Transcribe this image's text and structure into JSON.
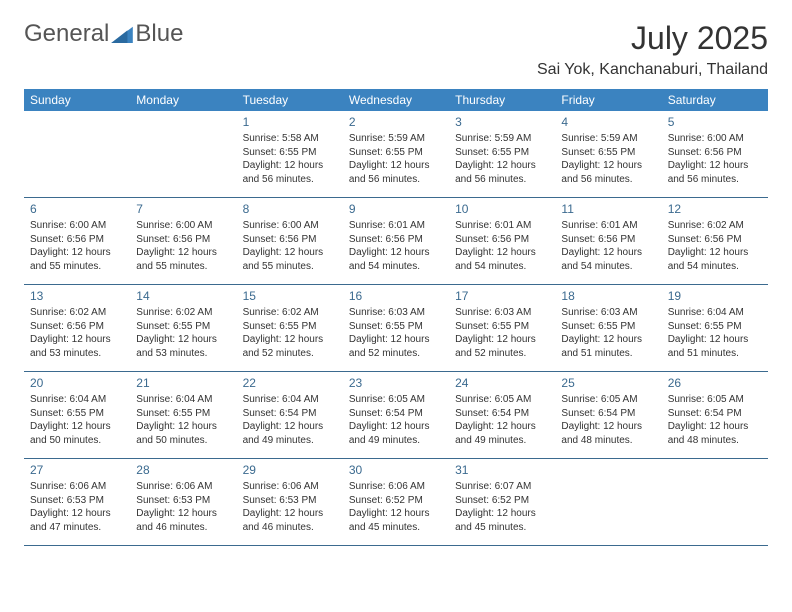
{
  "logo": {
    "word1": "General",
    "word2": "Blue"
  },
  "title": "July 2025",
  "location": "Sai Yok, Kanchanaburi, Thailand",
  "colors": {
    "header_bg": "#3b83c0",
    "header_text": "#ffffff",
    "day_number": "#3b6a8f",
    "row_border": "#3b6a8f",
    "body_text": "#333333",
    "logo_gray": "#555555",
    "logo_blue": "#3b83c0"
  },
  "weekdays": [
    "Sunday",
    "Monday",
    "Tuesday",
    "Wednesday",
    "Thursday",
    "Friday",
    "Saturday"
  ],
  "weeks": [
    [
      null,
      null,
      {
        "n": "1",
        "sunrise": "5:58 AM",
        "sunset": "6:55 PM",
        "daylight": "12 hours and 56 minutes."
      },
      {
        "n": "2",
        "sunrise": "5:59 AM",
        "sunset": "6:55 PM",
        "daylight": "12 hours and 56 minutes."
      },
      {
        "n": "3",
        "sunrise": "5:59 AM",
        "sunset": "6:55 PM",
        "daylight": "12 hours and 56 minutes."
      },
      {
        "n": "4",
        "sunrise": "5:59 AM",
        "sunset": "6:55 PM",
        "daylight": "12 hours and 56 minutes."
      },
      {
        "n": "5",
        "sunrise": "6:00 AM",
        "sunset": "6:56 PM",
        "daylight": "12 hours and 56 minutes."
      }
    ],
    [
      {
        "n": "6",
        "sunrise": "6:00 AM",
        "sunset": "6:56 PM",
        "daylight": "12 hours and 55 minutes."
      },
      {
        "n": "7",
        "sunrise": "6:00 AM",
        "sunset": "6:56 PM",
        "daylight": "12 hours and 55 minutes."
      },
      {
        "n": "8",
        "sunrise": "6:00 AM",
        "sunset": "6:56 PM",
        "daylight": "12 hours and 55 minutes."
      },
      {
        "n": "9",
        "sunrise": "6:01 AM",
        "sunset": "6:56 PM",
        "daylight": "12 hours and 54 minutes."
      },
      {
        "n": "10",
        "sunrise": "6:01 AM",
        "sunset": "6:56 PM",
        "daylight": "12 hours and 54 minutes."
      },
      {
        "n": "11",
        "sunrise": "6:01 AM",
        "sunset": "6:56 PM",
        "daylight": "12 hours and 54 minutes."
      },
      {
        "n": "12",
        "sunrise": "6:02 AM",
        "sunset": "6:56 PM",
        "daylight": "12 hours and 54 minutes."
      }
    ],
    [
      {
        "n": "13",
        "sunrise": "6:02 AM",
        "sunset": "6:56 PM",
        "daylight": "12 hours and 53 minutes."
      },
      {
        "n": "14",
        "sunrise": "6:02 AM",
        "sunset": "6:55 PM",
        "daylight": "12 hours and 53 minutes."
      },
      {
        "n": "15",
        "sunrise": "6:02 AM",
        "sunset": "6:55 PM",
        "daylight": "12 hours and 52 minutes."
      },
      {
        "n": "16",
        "sunrise": "6:03 AM",
        "sunset": "6:55 PM",
        "daylight": "12 hours and 52 minutes."
      },
      {
        "n": "17",
        "sunrise": "6:03 AM",
        "sunset": "6:55 PM",
        "daylight": "12 hours and 52 minutes."
      },
      {
        "n": "18",
        "sunrise": "6:03 AM",
        "sunset": "6:55 PM",
        "daylight": "12 hours and 51 minutes."
      },
      {
        "n": "19",
        "sunrise": "6:04 AM",
        "sunset": "6:55 PM",
        "daylight": "12 hours and 51 minutes."
      }
    ],
    [
      {
        "n": "20",
        "sunrise": "6:04 AM",
        "sunset": "6:55 PM",
        "daylight": "12 hours and 50 minutes."
      },
      {
        "n": "21",
        "sunrise": "6:04 AM",
        "sunset": "6:55 PM",
        "daylight": "12 hours and 50 minutes."
      },
      {
        "n": "22",
        "sunrise": "6:04 AM",
        "sunset": "6:54 PM",
        "daylight": "12 hours and 49 minutes."
      },
      {
        "n": "23",
        "sunrise": "6:05 AM",
        "sunset": "6:54 PM",
        "daylight": "12 hours and 49 minutes."
      },
      {
        "n": "24",
        "sunrise": "6:05 AM",
        "sunset": "6:54 PM",
        "daylight": "12 hours and 49 minutes."
      },
      {
        "n": "25",
        "sunrise": "6:05 AM",
        "sunset": "6:54 PM",
        "daylight": "12 hours and 48 minutes."
      },
      {
        "n": "26",
        "sunrise": "6:05 AM",
        "sunset": "6:54 PM",
        "daylight": "12 hours and 48 minutes."
      }
    ],
    [
      {
        "n": "27",
        "sunrise": "6:06 AM",
        "sunset": "6:53 PM",
        "daylight": "12 hours and 47 minutes."
      },
      {
        "n": "28",
        "sunrise": "6:06 AM",
        "sunset": "6:53 PM",
        "daylight": "12 hours and 46 minutes."
      },
      {
        "n": "29",
        "sunrise": "6:06 AM",
        "sunset": "6:53 PM",
        "daylight": "12 hours and 46 minutes."
      },
      {
        "n": "30",
        "sunrise": "6:06 AM",
        "sunset": "6:52 PM",
        "daylight": "12 hours and 45 minutes."
      },
      {
        "n": "31",
        "sunrise": "6:07 AM",
        "sunset": "6:52 PM",
        "daylight": "12 hours and 45 minutes."
      },
      null,
      null
    ]
  ],
  "labels": {
    "sunrise": "Sunrise:",
    "sunset": "Sunset:",
    "daylight": "Daylight:"
  }
}
